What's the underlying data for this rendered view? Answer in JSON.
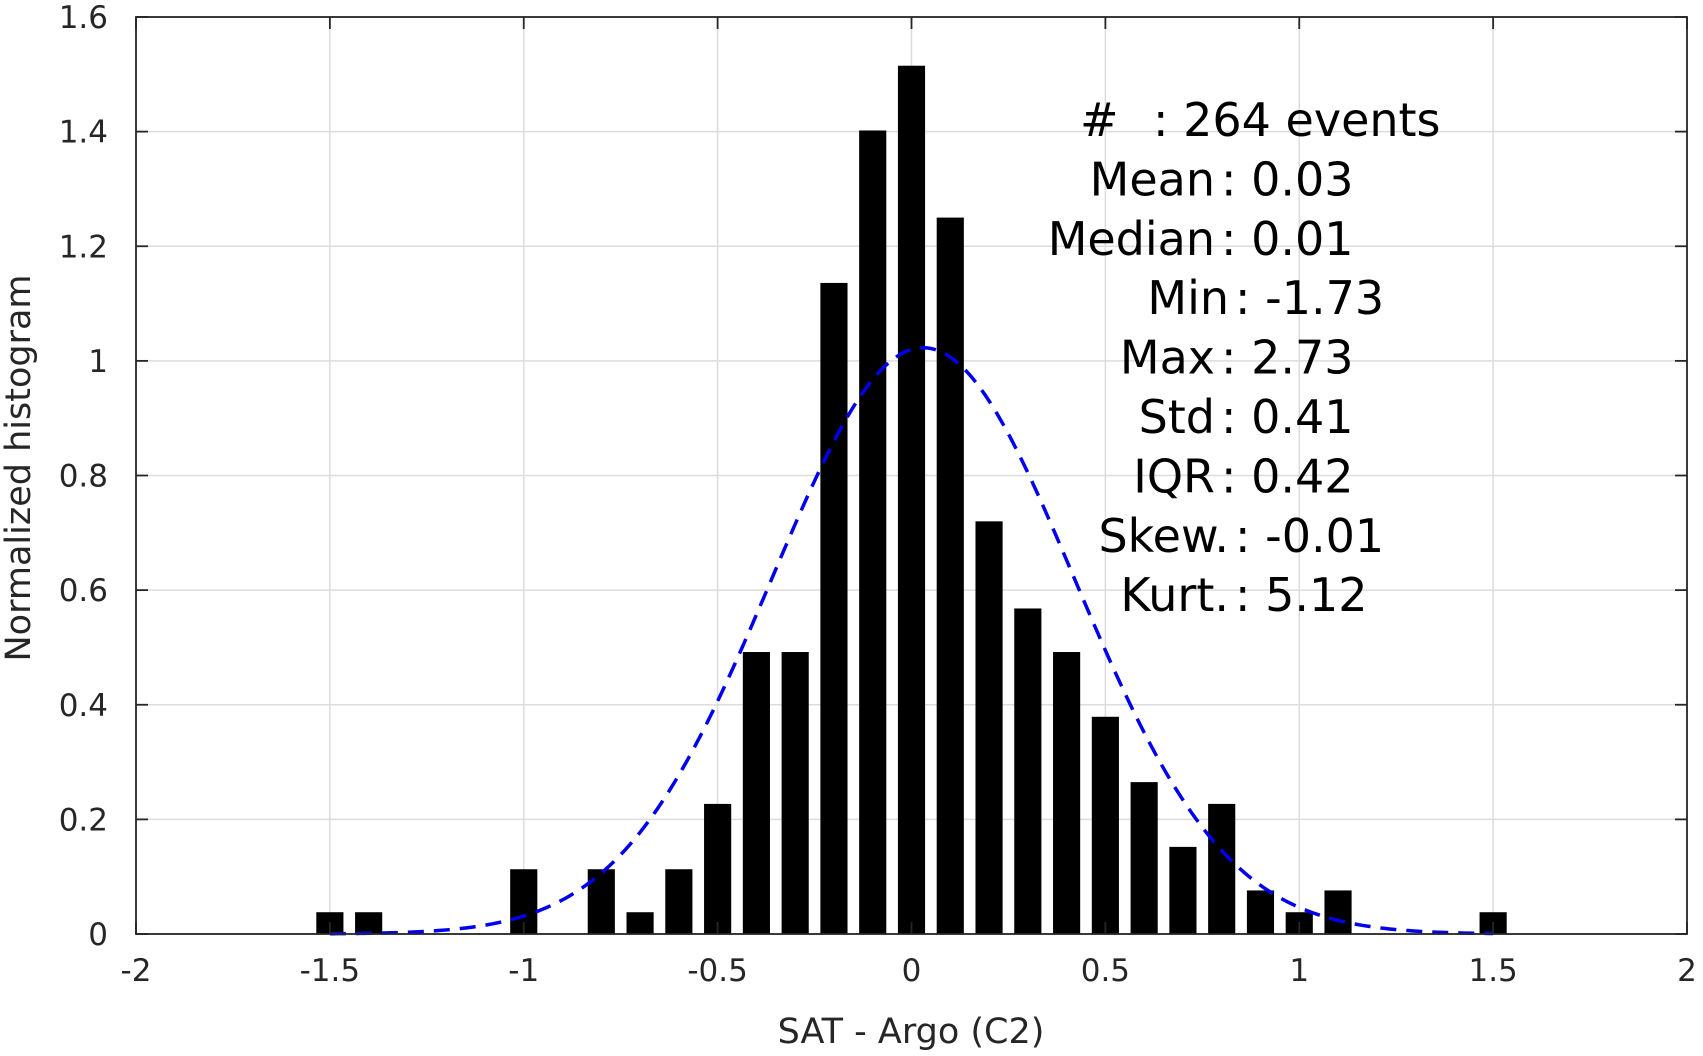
{
  "chart_data": {
    "type": "bar",
    "title": "",
    "xlabel": "SAT - Argo (C2)",
    "ylabel": "Normalized histogram",
    "xlim": [
      -2,
      2
    ],
    "ylim": [
      0,
      1.6
    ],
    "grid": true,
    "xticks": [
      -2,
      -1.5,
      -1,
      -0.5,
      0,
      0.5,
      1,
      1.5,
      2
    ],
    "xtick_labels": [
      "-2",
      "-1.5",
      "-1",
      "-0.5",
      "0",
      "0.5",
      "1",
      "1.5",
      "2"
    ],
    "yticks": [
      0,
      0.2,
      0.4,
      0.6,
      0.8,
      1,
      1.2,
      1.4,
      1.6
    ],
    "ytick_labels": [
      "0",
      "0.2",
      "0.4",
      "0.6",
      "0.8",
      "1",
      "1.2",
      "1.4",
      "1.6"
    ],
    "bar_color": "#000000",
    "bar_width": 0.07,
    "bars": {
      "x": [
        -1.5,
        -1.4,
        -1.0,
        -0.8,
        -0.7,
        -0.6,
        -0.5,
        -0.4,
        -0.3,
        -0.2,
        -0.1,
        0.0,
        0.1,
        0.2,
        0.3,
        0.4,
        0.5,
        0.6,
        0.7,
        0.8,
        0.9,
        1.0,
        1.1,
        1.5
      ],
      "values": [
        0.038,
        0.038,
        0.113,
        0.113,
        0.038,
        0.113,
        0.227,
        0.492,
        0.492,
        1.136,
        1.402,
        1.515,
        1.25,
        0.72,
        0.568,
        0.492,
        0.379,
        0.265,
        0.152,
        0.227,
        0.076,
        0.038,
        0.076,
        0.038
      ]
    },
    "fit_curve": {
      "type": "normal-pdf",
      "style": "dashed",
      "color": "#0000ee",
      "mean": 0.03,
      "std": 0.39,
      "x_range": [
        -1.5,
        1.5
      ]
    },
    "stats": [
      {
        "label": "#",
        "value": "264 events"
      },
      {
        "label": "Mean",
        "value": "0.03"
      },
      {
        "label": "Median",
        "value": "0.01"
      },
      {
        "label": "Min",
        "value": "-1.73"
      },
      {
        "label": "Max",
        "value": "2.73"
      },
      {
        "label": "Std",
        "value": "0.41"
      },
      {
        "label": "IQR",
        "value": "0.42"
      },
      {
        "label": "Skew.",
        "value": "-0.01"
      },
      {
        "label": "Kurt.",
        "value": "5.12"
      }
    ]
  }
}
